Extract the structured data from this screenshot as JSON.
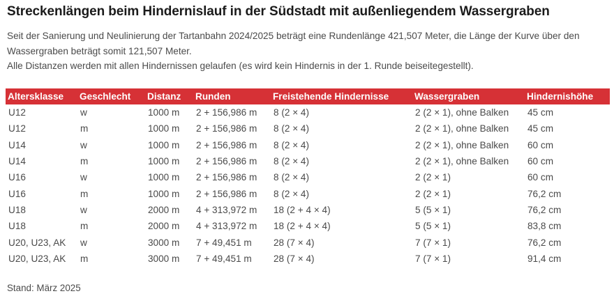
{
  "title": "Streckenlängen beim Hindernislauf in der Südstadt mit außenliegendem Wassergraben",
  "intro": {
    "line1": "Seit der Sanierung und Neulinierung der Tartanbahn 2024/2025 beträgt eine Rundenlänge 421,507 Meter, die Länge der Kurve über den Wassergraben beträgt somit 121,507 Meter.",
    "line2": "Alle Distanzen werden mit allen Hindernissen gelaufen (es wird kein Hindernis in der 1. Runde beiseitegestellt)."
  },
  "table": {
    "headers": [
      "Altersklasse",
      "Geschlecht",
      "Distanz",
      "Runden",
      "Freistehende Hindernisse",
      "Wassergraben",
      "Hindernishöhe"
    ],
    "rows": [
      [
        "U12",
        "w",
        "1000 m",
        "2 + 156,986 m",
        "8 (2 × 4)",
        "2 (2 × 1), ohne Balken",
        "45 cm"
      ],
      [
        "U12",
        "m",
        "1000 m",
        "2 + 156,986 m",
        "8 (2 × 4)",
        "2 (2 × 1), ohne Balken",
        "45 cm"
      ],
      [
        "U14",
        "w",
        "1000 m",
        "2 + 156,986 m",
        "8 (2 × 4)",
        "2 (2 × 1), ohne Balken",
        "60 cm"
      ],
      [
        "U14",
        "m",
        "1000 m",
        "2 + 156,986 m",
        "8 (2 × 4)",
        "2 (2 × 1), ohne Balken",
        "60 cm"
      ],
      [
        "U16",
        "w",
        "1000 m",
        "2 + 156,986 m",
        "8 (2 × 4)",
        "2 (2 × 1)",
        "60 cm"
      ],
      [
        "U16",
        "m",
        "1000 m",
        "2 + 156,986 m",
        "8 (2 × 4)",
        "2 (2 × 1)",
        "76,2 cm"
      ],
      [
        "U18",
        "w",
        "2000 m",
        "4 + 313,972 m",
        "18 (2 + 4 × 4)",
        "5 (5 × 1)",
        "76,2 cm"
      ],
      [
        "U18",
        "m",
        "2000 m",
        "4 + 313,972 m",
        "18 (2 + 4 × 4)",
        "5 (5 × 1)",
        "83,8 cm"
      ],
      [
        "U20, U23, AK",
        "w",
        "3000 m",
        "7 + 49,451 m",
        "28 (7 × 4)",
        "7 (7 × 1)",
        "76,2 cm"
      ],
      [
        "U20, U23, AK",
        "m",
        "3000 m",
        "7 + 49,451 m",
        "28 (7 × 4)",
        "7 (7 × 1)",
        "91,4 cm"
      ]
    ]
  },
  "footer": "Stand: März 2025",
  "colors": {
    "header_background": "#d63136",
    "header_text": "#ffffff",
    "title_text": "#1b1b1b",
    "body_text": "#4a4a4a"
  }
}
